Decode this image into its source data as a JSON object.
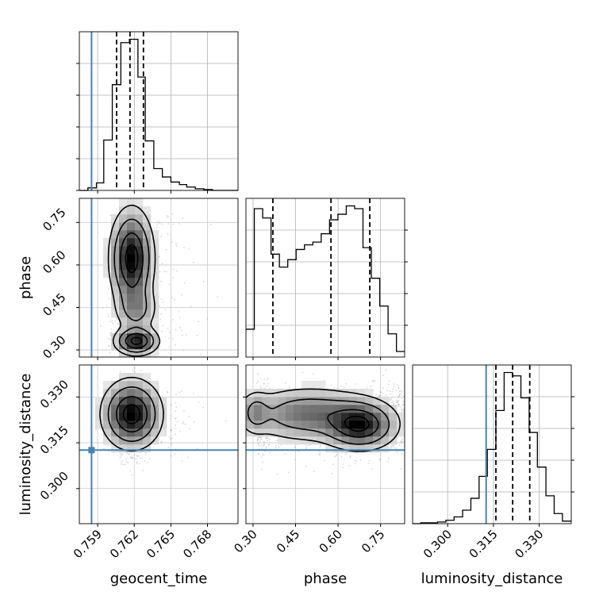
{
  "chart_data": {
    "type": "corner",
    "parameters": [
      "geocent_time",
      "phase",
      "luminosity_distance"
    ],
    "axis_labels": {
      "x": [
        "geocent_time",
        "phase",
        "luminosity_distance"
      ],
      "y": [
        "phase",
        "luminosity_distance"
      ]
    },
    "truth": {
      "geocent_time": 0.7585,
      "phase": null,
      "luminosity_distance": 0.3126
    },
    "truth_color": "#4682b4",
    "ranges": {
      "geocent_time": [
        0.7575,
        0.7705
      ],
      "phase": [
        0.275,
        0.835
      ],
      "luminosity_distance": [
        0.2885,
        0.3405
      ]
    },
    "ticks": {
      "geocent_time": [
        0.759,
        0.762,
        0.765,
        0.768
      ],
      "geocent_time_labels": [
        "0.759",
        "0.762",
        "0.765",
        "0.768"
      ],
      "phase": [
        0.3,
        0.45,
        0.6,
        0.75
      ],
      "phase_labels": [
        "0.30",
        "0.45",
        "0.60",
        "0.75"
      ],
      "luminosity_distance": [
        0.3,
        0.315,
        0.33
      ],
      "luminosity_distance_labels": [
        "0.300",
        "0.315",
        "0.330"
      ]
    },
    "histograms": [
      {
        "parameter": "geocent_time",
        "bin_edges": [
          0.7575,
          0.7582,
          0.7589,
          0.7595,
          0.7602,
          0.7609,
          0.7616,
          0.7623,
          0.7629,
          0.7636,
          0.7643,
          0.765,
          0.7657,
          0.7663,
          0.767,
          0.7677,
          0.7684,
          0.769,
          0.7698,
          0.7705
        ],
        "counts": [
          0,
          3,
          9,
          60,
          126,
          176,
          180,
          135,
          59,
          26,
          16,
          10,
          7,
          4,
          2,
          1,
          0,
          0,
          0
        ],
        "quantiles": [
          0.76055,
          0.76165,
          0.76275
        ]
      },
      {
        "parameter": "phase",
        "bin_edges": [
          0.275,
          0.3045,
          0.334,
          0.3635,
          0.393,
          0.4225,
          0.452,
          0.4815,
          0.511,
          0.5405,
          0.57,
          0.5995,
          0.629,
          0.6585,
          0.688,
          0.7175,
          0.747,
          0.7765,
          0.806,
          0.835
        ],
        "counts": [
          30,
          160,
          150,
          111,
          97,
          105,
          116,
          121,
          124,
          133,
          148,
          154,
          163,
          160,
          118,
          85,
          55,
          25,
          6
        ],
        "quantiles": [
          0.37,
          0.575,
          0.712
        ]
      },
      {
        "parameter": "luminosity_distance",
        "bin_edges": [
          0.2885,
          0.2912,
          0.2939,
          0.2967,
          0.2994,
          0.3021,
          0.3049,
          0.3076,
          0.3103,
          0.313,
          0.3158,
          0.3185,
          0.3212,
          0.324,
          0.3267,
          0.3294,
          0.3322,
          0.3349,
          0.3376,
          0.3405
        ],
        "counts": [
          0,
          1,
          1,
          2,
          4,
          8,
          16,
          30,
          56,
          88,
          134,
          179,
          175,
          149,
          108,
          67,
          33,
          12,
          3
        ],
        "quantiles": [
          0.3158,
          0.3213,
          0.3269
        ]
      }
    ],
    "panels_2d": [
      {
        "x": "geocent_time",
        "y": "phase",
        "mode": {
          "geocent_time": 0.7617,
          "phase": 0.64
        }
      },
      {
        "x": "geocent_time",
        "y": "luminosity_distance",
        "mode": {
          "geocent_time": 0.7616,
          "luminosity_distance": 0.3245
        }
      },
      {
        "x": "phase",
        "y": "luminosity_distance",
        "mode": {
          "phase": 0.65,
          "luminosity_distance": 0.3225
        }
      }
    ],
    "grid": true,
    "legend": "none"
  }
}
